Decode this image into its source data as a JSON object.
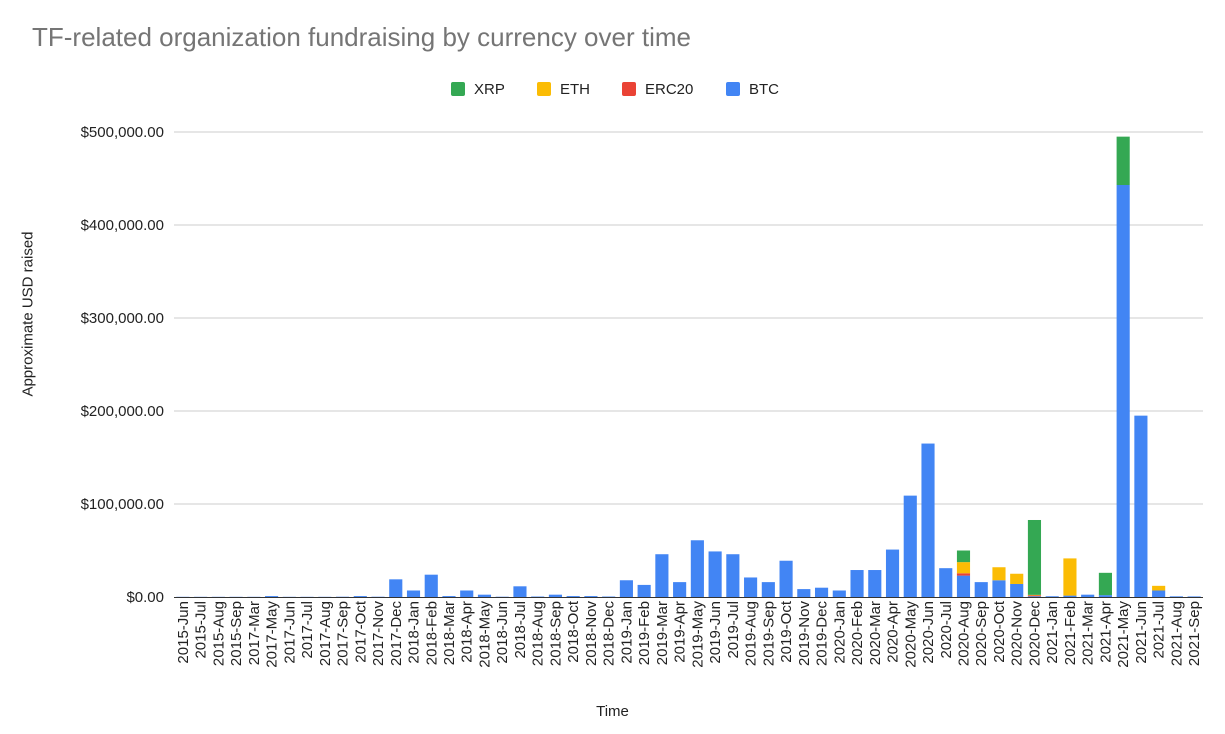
{
  "chart_data": {
    "type": "bar",
    "stacked": true,
    "title": "TF-related organization fundraising by currency over time",
    "xlabel": "Time",
    "ylabel": "Approximate USD raised",
    "ylim": [
      0,
      500000
    ],
    "yticks": [
      "$0.00",
      "$100,000.00",
      "$200,000.00",
      "$300,000.00",
      "$400,000.00",
      "$500,000.00"
    ],
    "grid": true,
    "legend_position": "top",
    "legend": [
      "XRP",
      "ETH",
      "ERC20",
      "BTC"
    ],
    "categories": [
      "2015-Jun",
      "2015-Jul",
      "2015-Aug",
      "2015-Sep",
      "2017-Mar",
      "2017-May",
      "2017-Jun",
      "2017-Jul",
      "2017-Aug",
      "2017-Sep",
      "2017-Oct",
      "2017-Nov",
      "2017-Dec",
      "2018-Jan",
      "2018-Feb",
      "2018-Mar",
      "2018-Apr",
      "2018-May",
      "2018-Jun",
      "2018-Jul",
      "2018-Aug",
      "2018-Sep",
      "2018-Oct",
      "2018-Nov",
      "2018-Dec",
      "2019-Jan",
      "2019-Feb",
      "2019-Mar",
      "2019-Apr",
      "2019-May",
      "2019-Jun",
      "2019-Jul",
      "2019-Aug",
      "2019-Sep",
      "2019-Oct",
      "2019-Nov",
      "2019-Dec",
      "2020-Jan",
      "2020-Feb",
      "2020-Mar",
      "2020-Apr",
      "2020-May",
      "2020-Jun",
      "2020-Jul",
      "2020-Aug",
      "2020-Sep",
      "2020-Oct",
      "2020-Nov",
      "2020-Dec",
      "2021-Jan",
      "2021-Feb",
      "2021-Mar",
      "2021-Apr",
      "2021-May",
      "2021-Jun",
      "2021-Jul",
      "2021-Aug",
      "2021-Sep"
    ],
    "series": [
      {
        "name": "BTC",
        "color": "#4285f4",
        "values": [
          200,
          200,
          200,
          200,
          200,
          1000,
          200,
          200,
          200,
          300,
          1000,
          300,
          19000,
          7000,
          24000,
          1000,
          7000,
          2500,
          300,
          11500,
          500,
          2500,
          1000,
          1000,
          500,
          18000,
          13000,
          46000,
          16000,
          61000,
          49000,
          46000,
          21000,
          16000,
          39000,
          8500,
          10000,
          7000,
          29000,
          29000,
          51000,
          109000,
          165000,
          31000,
          23000,
          16000,
          18000,
          14000,
          800,
          800,
          1500,
          2500,
          2000,
          443000,
          195000,
          7000,
          700,
          600
        ]
      },
      {
        "name": "ERC20",
        "color": "#ea4335",
        "values": [
          0,
          0,
          0,
          0,
          0,
          0,
          0,
          0,
          0,
          0,
          0,
          0,
          0,
          0,
          0,
          0,
          0,
          0,
          0,
          0,
          0,
          0,
          0,
          0,
          0,
          0,
          0,
          0,
          0,
          0,
          0,
          0,
          0,
          0,
          0,
          0,
          0,
          0,
          0,
          0,
          0,
          0,
          0,
          0,
          2500,
          0,
          0,
          0,
          1000,
          0,
          0,
          0,
          0,
          0,
          0,
          0,
          0,
          0
        ]
      },
      {
        "name": "ETH",
        "color": "#fbbc04",
        "values": [
          0,
          0,
          0,
          0,
          0,
          0,
          0,
          0,
          0,
          0,
          0,
          0,
          0,
          0,
          0,
          0,
          0,
          0,
          0,
          0,
          0,
          0,
          0,
          0,
          0,
          0,
          0,
          0,
          0,
          0,
          0,
          0,
          0,
          0,
          0,
          0,
          0,
          0,
          0,
          0,
          0,
          0,
          0,
          0,
          12000,
          0,
          14000,
          11000,
          500,
          0,
          40000,
          0,
          0,
          0,
          0,
          5000,
          0,
          0
        ]
      },
      {
        "name": "XRP",
        "color": "#34a853",
        "values": [
          0,
          0,
          0,
          0,
          0,
          0,
          0,
          0,
          0,
          0,
          0,
          0,
          0,
          0,
          0,
          0,
          0,
          0,
          0,
          0,
          0,
          0,
          0,
          0,
          0,
          0,
          0,
          0,
          0,
          0,
          0,
          0,
          0,
          0,
          0,
          0,
          0,
          0,
          0,
          0,
          0,
          0,
          0,
          0,
          12500,
          0,
          0,
          0,
          80500,
          0,
          0,
          0,
          24000,
          52000,
          0,
          0,
          0,
          0
        ]
      }
    ]
  }
}
